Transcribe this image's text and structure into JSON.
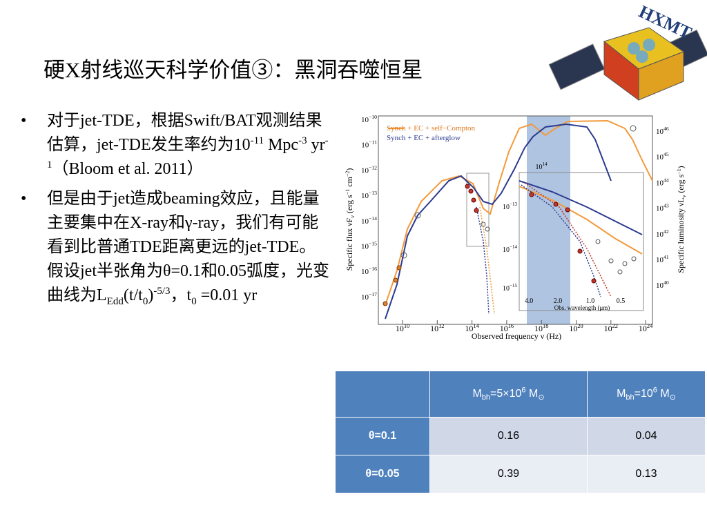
{
  "title": "硬X射线巡天科学价值③：黑洞吞噬恒星",
  "logo": "HXMT",
  "bullets": [
    [
      "对于jet-TDE，根据Swift/BAT观测结果估算，jet-TDE发生率约为10",
      "-11",
      " Mpc",
      "-3",
      " yr",
      "-1",
      "（Bloom et al. 2011）"
    ],
    [
      "但是由于jet造成beaming效应，且能量主要集中在X-ray和γ-ray，我们有可能看到比普通TDE距离更远的jet-TDE。假设jet半张角为θ=0.1和0.05弧度，光变曲线为L",
      "Edd",
      "(t/t",
      "0",
      ")",
      "-5/3",
      "，t",
      "0",
      " =0.01 yr"
    ]
  ],
  "figure": {
    "legend": [
      "Synch + EC + self−Compton",
      "Synch + EC + afterglow"
    ],
    "x_label": "Observed frequency ν (Hz)",
    "y_label": [
      "Specific flux νF",
      "ν",
      " (erg s",
      "−1",
      " cm",
      "−2",
      ")"
    ],
    "y2_label": [
      "Specific luminosity νL",
      "ν",
      " (erg s",
      "−1",
      ")"
    ],
    "tick_base": "10",
    "x_tick_exponents": [
      "10",
      "12",
      "14",
      "16",
      "18",
      "20",
      "22",
      "24"
    ],
    "y_tick_exponents": [
      "−10",
      "−11",
      "−12",
      "−13",
      "−14",
      "−15",
      "−16",
      "−17"
    ],
    "y2_tick_exponents": [
      "46",
      "45",
      "44",
      "43",
      "42",
      "41",
      "40"
    ],
    "inset": {
      "marker_exponent": "14",
      "x_label": "Obs. wavelength (μm)",
      "x_ticks": [
        "4.0",
        "2.0",
        "1.0",
        "0.5"
      ],
      "y_tick_exponents": [
        "−13",
        "−14",
        "−15"
      ]
    }
  },
  "table": {
    "header": [
      [
        "M",
        "bh",
        "=5×10",
        "6",
        " M",
        "⊙"
      ],
      [
        "M",
        "bh",
        "=10",
        "6",
        " M",
        "⊙"
      ]
    ],
    "rows": [
      [
        "θ=0.1",
        "0.16",
        "0.04"
      ],
      [
        "θ=0.05",
        "0.39",
        "0.13"
      ]
    ]
  }
}
